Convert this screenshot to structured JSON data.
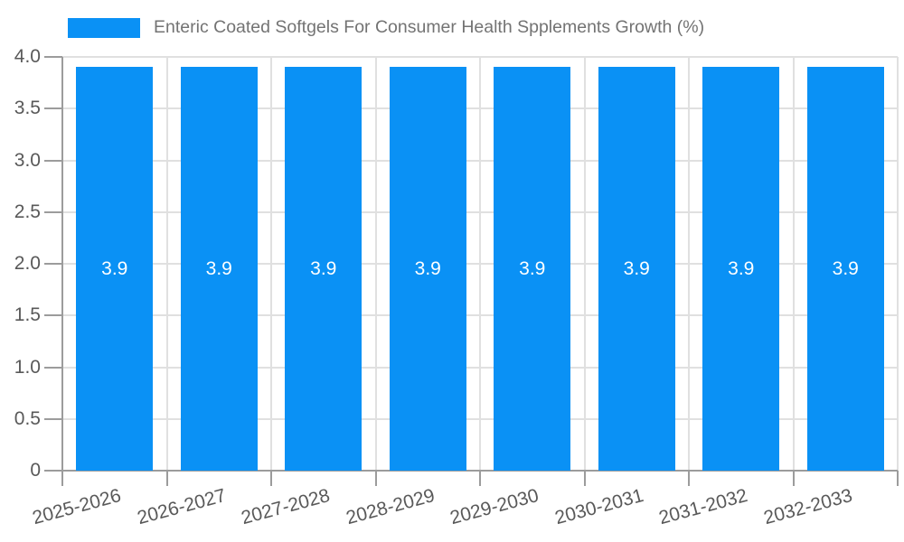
{
  "legend": {
    "label": "Enteric Coated Softgels For Consumer Health Spplements Growth (%)"
  },
  "colors": {
    "bar": "#0a91f5",
    "grid": "#e0e0e0",
    "axis": "#9c9c9c",
    "tick_label": "#595959",
    "title_text": "#737373",
    "bar_label": "#ffffff",
    "background": "#ffffff"
  },
  "chart_data": {
    "type": "bar",
    "title": "Enteric Coated Softgels For Consumer Health Spplements Growth (%)",
    "categories": [
      "2025-2026",
      "2026-2027",
      "2027-2028",
      "2028-2029",
      "2029-2030",
      "2030-2031",
      "2031-2032",
      "2032-2033"
    ],
    "series": [
      {
        "name": "Enteric Coated Softgels For Consumer Health Spplements Growth (%)",
        "values": [
          3.9,
          3.9,
          3.9,
          3.9,
          3.9,
          3.9,
          3.9,
          3.9
        ]
      }
    ],
    "bar_value_labels": [
      "3.9",
      "3.9",
      "3.9",
      "3.9",
      "3.9",
      "3.9",
      "3.9",
      "3.9"
    ],
    "xlabel": "",
    "ylabel": "",
    "ylim": [
      0,
      4.0
    ],
    "yticks": [
      "0",
      "0.5",
      "1.0",
      "1.5",
      "2.0",
      "2.5",
      "3.0",
      "3.5",
      "4.0"
    ],
    "grid": true,
    "legend_position": "top-left",
    "xlabel_rotation_deg": -15
  }
}
